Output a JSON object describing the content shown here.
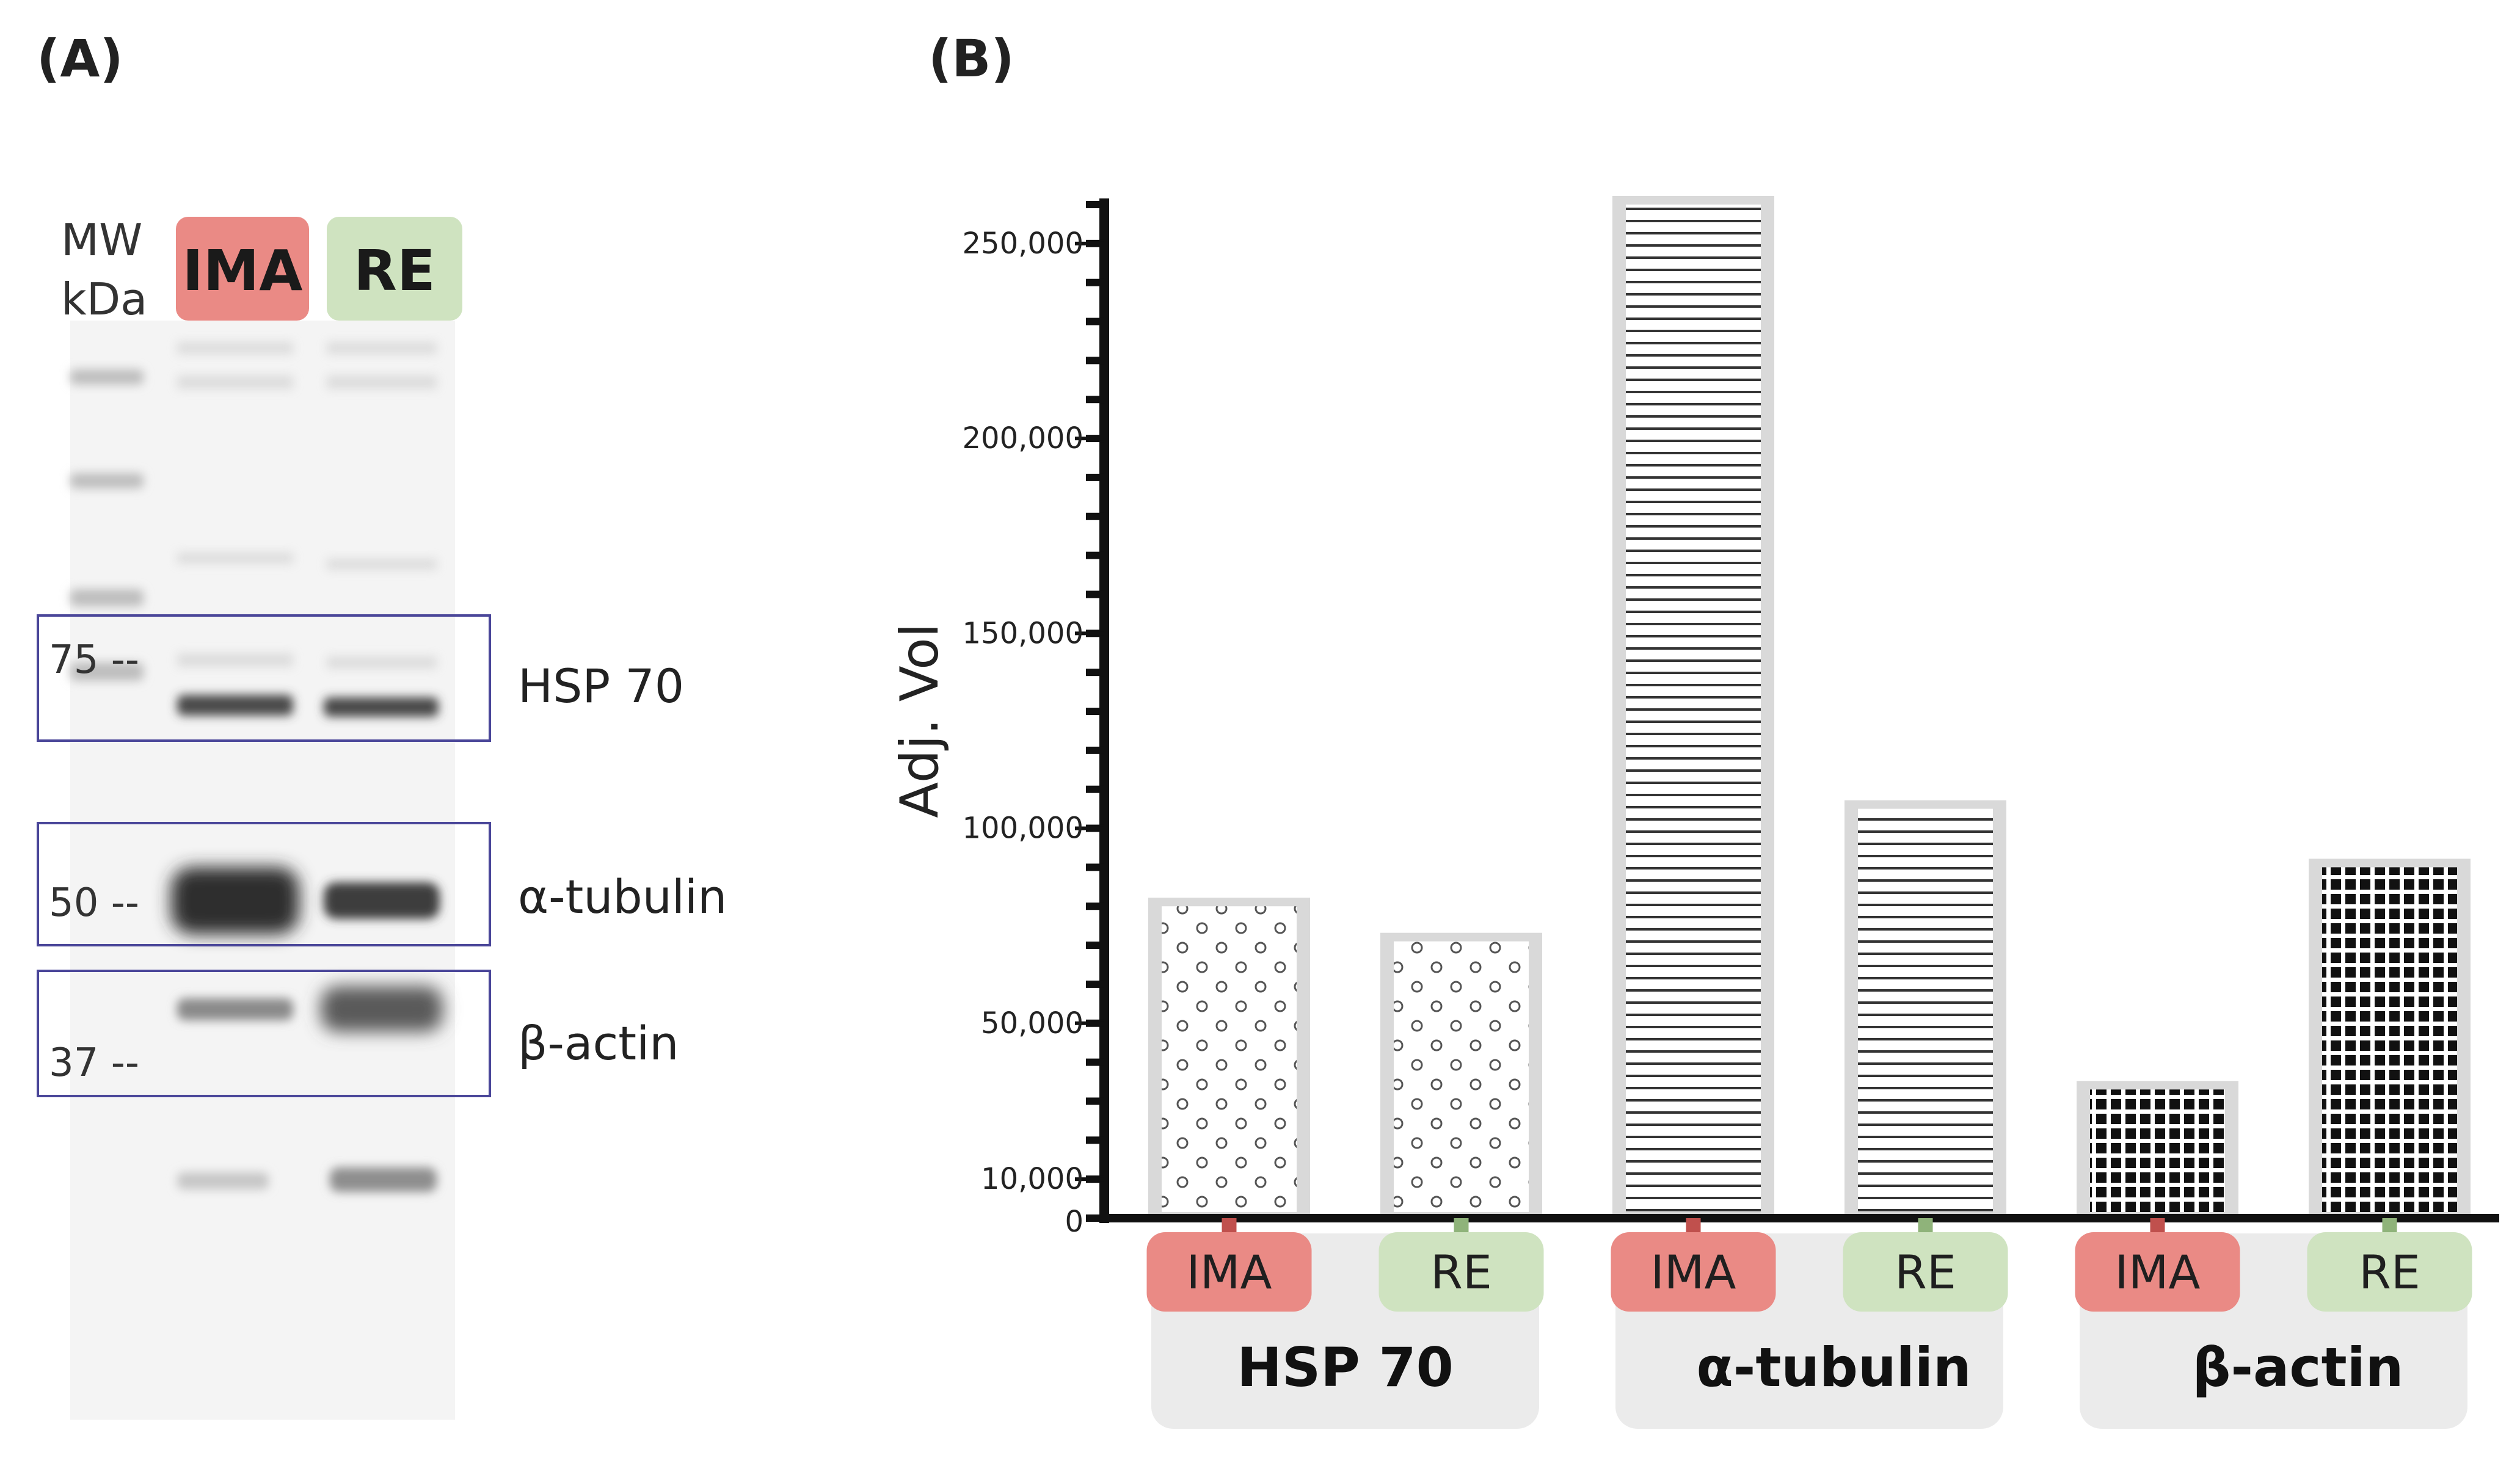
{
  "panels": {
    "a_label": "(A)",
    "b_label": "(B)"
  },
  "blot": {
    "mw_label_line1": "MW",
    "mw_label_line2": "kDa",
    "lanes": [
      {
        "label": "IMA",
        "color": "#ea8a85"
      },
      {
        "label": "RE",
        "color": "#cfe3c0"
      }
    ],
    "markers": [
      {
        "label": "75 --"
      },
      {
        "label": "50 --"
      },
      {
        "label": "37 --"
      }
    ],
    "proteins": [
      "HSP 70",
      "α-tubulin",
      "β-actin"
    ],
    "box_color": "#4a4699"
  },
  "chart_data": {
    "type": "bar",
    "ylabel": "Adj. Vol",
    "xlabel": "",
    "ylim": [
      0,
      260000
    ],
    "yticks": [
      0,
      10000,
      50000,
      100000,
      150000,
      200000,
      250000
    ],
    "ytick_labels": [
      "0",
      "10,000",
      "50,000",
      "100,000",
      "150,000",
      "200,000",
      "250,000"
    ],
    "groups": [
      {
        "name": "HSP 70",
        "pattern": "circles",
        "bars": [
          {
            "condition": "IMA",
            "value": 80000
          },
          {
            "condition": "RE",
            "value": 71000
          }
        ]
      },
      {
        "name": "α-tubulin",
        "pattern": "hlines",
        "bars": [
          {
            "condition": "IMA",
            "value": 260000
          },
          {
            "condition": "RE",
            "value": 105000
          }
        ]
      },
      {
        "name": "β-actin",
        "pattern": "checker",
        "bars": [
          {
            "condition": "IMA",
            "value": 33000
          },
          {
            "condition": "RE",
            "value": 90000
          }
        ]
      }
    ],
    "condition_colors": {
      "IMA": "#ea8a85",
      "RE": "#cfe3c0"
    },
    "group_box_color": "#ebebeb",
    "bar_border_color": "#d9d9d9"
  }
}
